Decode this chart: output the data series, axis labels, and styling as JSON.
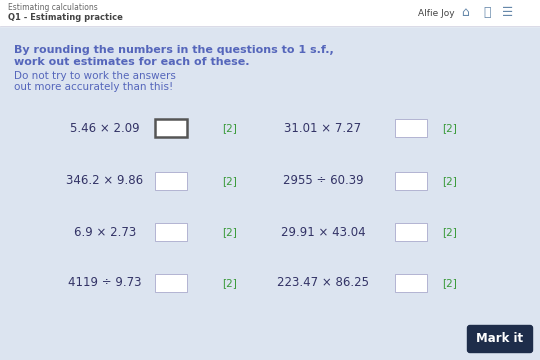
{
  "title_top": "Estimating calculations",
  "subtitle_top": "Q1 - Estimating practice",
  "user_name": "Alfie Joy",
  "bg_color": "#dce4f0",
  "header_bg": "#ffffff",
  "header_text_color": "#555555",
  "instruction_bold_color": "#5566bb",
  "instruction_small_color": "#5566bb",
  "mark_color": "#3a9a3a",
  "mark_it_bg": "#1e2d4a",
  "mark_it_text": "#ffffff",
  "questions_left": [
    "5.46 × 2.09",
    "346.2 × 9.86",
    "6.9 × 2.73",
    "4119 ÷ 9.73"
  ],
  "questions_right": [
    "31.01 × 7.27",
    "2955 ÷ 60.39",
    "29.91 × 43.04",
    "223.47 × 86.25"
  ],
  "marks": "[2]",
  "instruction_line1": "By rounding the numbers in the questions to 1 s.f.,",
  "instruction_line2": "work out estimates for each of these.",
  "instruction_line3": "Do not try to work the answers",
  "instruction_line4": "out more accurately than this!"
}
